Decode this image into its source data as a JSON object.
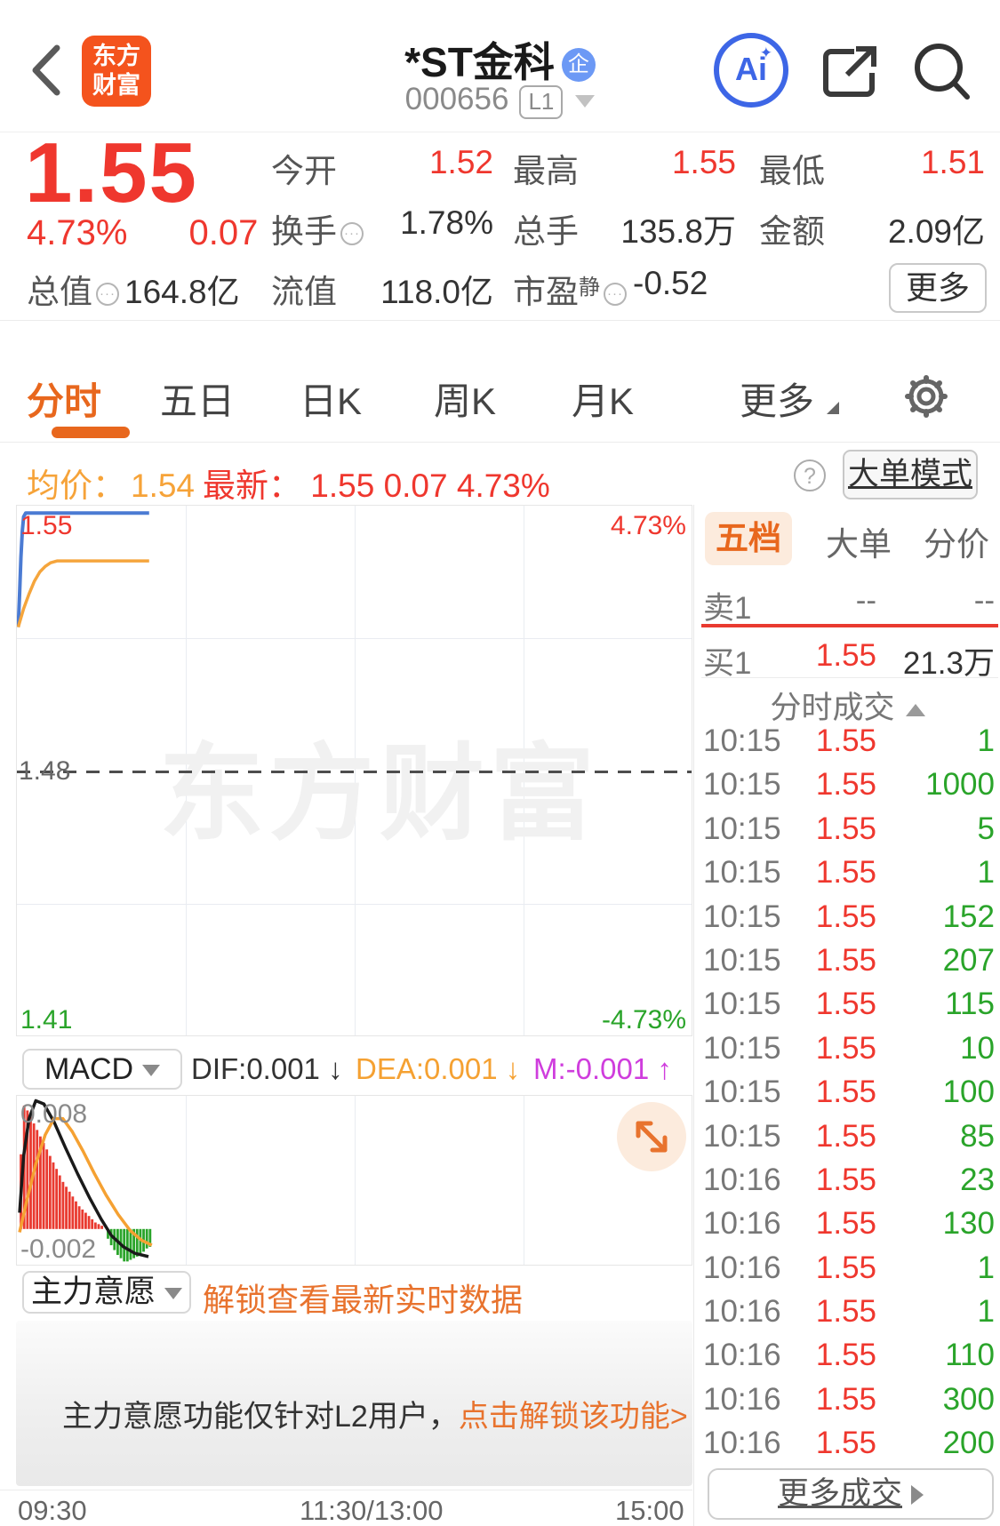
{
  "header": {
    "logo_line1": "东方",
    "logo_line2": "财富",
    "title": "*ST金科",
    "title_badge": "企",
    "code": "000656",
    "level_badge": "L1",
    "ai_label": "Ai"
  },
  "quote": {
    "price": "1.55",
    "change_pct": "4.73%",
    "change": "0.07",
    "stats": [
      {
        "label": "今开",
        "value": "1.52"
      },
      {
        "label": "最高",
        "value": "1.55"
      },
      {
        "label": "最低",
        "value": "1.51"
      },
      {
        "label": "换手",
        "value": "1.78%"
      },
      {
        "label": "总手",
        "value": "135.8万"
      },
      {
        "label": "金额",
        "value": "2.09亿"
      },
      {
        "label": "总值",
        "value": "164.8亿"
      },
      {
        "label": "流值",
        "value": "118.0亿"
      },
      {
        "label": "市盈",
        "sub_label": "静",
        "value": "-0.52"
      }
    ],
    "more_label": "更多"
  },
  "tabs": {
    "items": [
      "分时",
      "五日",
      "日K",
      "周K",
      "月K",
      "更多"
    ],
    "active_index": 0
  },
  "subheader": {
    "avg_label": "均价：",
    "avg_value": "1.54",
    "latest_text": "最新： 1.55  0.07  4.73%",
    "help_icon": "?",
    "mode_button": "大单模式"
  },
  "watermark": "东方财富",
  "chart_data": [
    {
      "type": "line",
      "title": "分时图",
      "x_axis_labels": [
        "09:30",
        "11:30/13:00",
        "15:00"
      ],
      "ylim": [
        1.41,
        1.55
      ],
      "ylim_draw": [
        1.408,
        1.552
      ],
      "prev_close": 1.48,
      "labels": {
        "top_left": "1.55",
        "top_right": "4.73%",
        "mid_left": "1.48",
        "bottom_left": "1.41",
        "bottom_right": "-4.73%"
      },
      "series": [
        {
          "name": "price",
          "color": "#4b7bd3",
          "width": 4,
          "points": [
            [
              0.002,
              1.519
            ],
            [
              0.004,
              1.528
            ],
            [
              0.006,
              1.538
            ],
            [
              0.008,
              1.545
            ],
            [
              0.01,
              1.549
            ],
            [
              0.013,
              1.55
            ],
            [
              0.196,
              1.55
            ]
          ]
        },
        {
          "name": "avg",
          "color": "#f5a53c",
          "width": 3.5,
          "points": [
            [
              0.002,
              1.519
            ],
            [
              0.01,
              1.524
            ],
            [
              0.018,
              1.528
            ],
            [
              0.026,
              1.5315
            ],
            [
              0.034,
              1.534
            ],
            [
              0.042,
              1.5355
            ],
            [
              0.05,
              1.5365
            ],
            [
              0.06,
              1.537
            ],
            [
              0.196,
              1.537
            ]
          ]
        }
      ]
    },
    {
      "type": "bar",
      "title": "MACD",
      "ylim": [
        -0.002,
        0.008
      ],
      "ylim_draw": [
        -0.0022,
        0.0082
      ],
      "labels": {
        "top": "0.008",
        "bottom": "-0.002"
      },
      "bar_width": 2.8,
      "bars_up_color": "#e93a30",
      "bars_down_color": "#2aa42a",
      "bars": [
        [
          0.006,
          0.0046
        ],
        [
          0.0108,
          0.0076
        ],
        [
          0.0156,
          0.0073
        ],
        [
          0.0204,
          0.0069
        ],
        [
          0.0252,
          0.0065
        ],
        [
          0.03,
          0.0061
        ],
        [
          0.0348,
          0.0057
        ],
        [
          0.0396,
          0.0053
        ],
        [
          0.0444,
          0.0049
        ],
        [
          0.0492,
          0.0045
        ],
        [
          0.054,
          0.0041
        ],
        [
          0.0588,
          0.0037
        ],
        [
          0.0636,
          0.0033
        ],
        [
          0.0684,
          0.0029
        ],
        [
          0.0732,
          0.0026
        ],
        [
          0.078,
          0.0023
        ],
        [
          0.0828,
          0.002
        ],
        [
          0.0876,
          0.0017
        ],
        [
          0.0924,
          0.0014
        ],
        [
          0.0972,
          0.0012
        ],
        [
          0.102,
          0.001
        ],
        [
          0.1068,
          0.0008
        ],
        [
          0.1116,
          0.0006
        ],
        [
          0.1164,
          0.0004
        ],
        [
          0.1212,
          0.0003
        ],
        [
          0.126,
          0.0002
        ],
        [
          0.135,
          -0.0006
        ],
        [
          0.1398,
          -0.001
        ],
        [
          0.1446,
          -0.0013
        ],
        [
          0.1494,
          -0.0016
        ],
        [
          0.1542,
          -0.0018
        ],
        [
          0.159,
          -0.002
        ],
        [
          0.1638,
          -0.002
        ],
        [
          0.1686,
          -0.0019
        ],
        [
          0.1734,
          -0.0018
        ],
        [
          0.1782,
          -0.0017
        ],
        [
          0.183,
          -0.0015
        ],
        [
          0.1878,
          -0.0014
        ],
        [
          0.1926,
          -0.0012
        ],
        [
          0.1974,
          -0.0011
        ]
      ],
      "series": [
        {
          "name": "DIF",
          "color": "#1a1a1a",
          "width": 3.5,
          "points": [
            [
              0.004,
              0.001
            ],
            [
              0.01,
              0.0045
            ],
            [
              0.018,
              0.0068
            ],
            [
              0.028,
              0.0079
            ],
            [
              0.04,
              0.0077
            ],
            [
              0.055,
              0.0066
            ],
            [
              0.072,
              0.005
            ],
            [
              0.09,
              0.0034
            ],
            [
              0.108,
              0.0019
            ],
            [
              0.125,
              0.0006
            ],
            [
              0.14,
              -0.0004
            ],
            [
              0.158,
              -0.0011
            ],
            [
              0.175,
              -0.0015
            ],
            [
              0.195,
              -0.0017
            ]
          ]
        },
        {
          "name": "DEA",
          "color": "#f5a132",
          "width": 3.5,
          "points": [
            [
              0.004,
              -0.0002
            ],
            [
              0.015,
              0.0018
            ],
            [
              0.028,
              0.004
            ],
            [
              0.042,
              0.0058
            ],
            [
              0.055,
              0.0068
            ],
            [
              0.068,
              0.0068
            ],
            [
              0.082,
              0.006
            ],
            [
              0.098,
              0.0048
            ],
            [
              0.115,
              0.0034
            ],
            [
              0.132,
              0.0021
            ],
            [
              0.15,
              0.0009
            ],
            [
              0.168,
              -0.0001
            ],
            [
              0.185,
              -0.0007
            ],
            [
              0.2,
              -0.001
            ]
          ]
        }
      ]
    }
  ],
  "macd_row": {
    "indicator": "MACD",
    "dif_text": "DIF:0.001",
    "dif_arrow": "↓",
    "dea_text": "DEA:0.001",
    "dea_arrow": "↓",
    "m_text": "M:-0.001",
    "m_arrow": "↑",
    "dif_color": "#333333",
    "dea_color": "#f5a132",
    "m_color": "#cf3ddd"
  },
  "mainforce": {
    "selector_label": "主力意愿",
    "unlock_hint": "解锁查看最新实时数据",
    "banner_text": "主力意愿功能仅针对L2用户，",
    "banner_link": "点击解锁该功能>"
  },
  "time_axis": [
    "09:30",
    "11:30/13:00",
    "15:00"
  ],
  "panel": {
    "tabs": [
      "五档",
      "大单",
      "分价"
    ],
    "active_tab": "五档",
    "sell_row": {
      "label": "卖1",
      "price": "--",
      "volume": "--"
    },
    "buy_row": {
      "label": "买1",
      "price": "1.55",
      "volume": "21.3万"
    },
    "list_title": "分时成交",
    "trades": [
      {
        "time": "10:15",
        "price": "1.55",
        "volume": "1"
      },
      {
        "time": "10:15",
        "price": "1.55",
        "volume": "1000"
      },
      {
        "time": "10:15",
        "price": "1.55",
        "volume": "5"
      },
      {
        "time": "10:15",
        "price": "1.55",
        "volume": "1"
      },
      {
        "time": "10:15",
        "price": "1.55",
        "volume": "152"
      },
      {
        "time": "10:15",
        "price": "1.55",
        "volume": "207"
      },
      {
        "time": "10:15",
        "price": "1.55",
        "volume": "115"
      },
      {
        "time": "10:15",
        "price": "1.55",
        "volume": "10"
      },
      {
        "time": "10:15",
        "price": "1.55",
        "volume": "100"
      },
      {
        "time": "10:15",
        "price": "1.55",
        "volume": "85"
      },
      {
        "time": "10:16",
        "price": "1.55",
        "volume": "23"
      },
      {
        "time": "10:16",
        "price": "1.55",
        "volume": "130"
      },
      {
        "time": "10:16",
        "price": "1.55",
        "volume": "1"
      },
      {
        "time": "10:16",
        "price": "1.55",
        "volume": "1"
      },
      {
        "time": "10:16",
        "price": "1.55",
        "volume": "110"
      },
      {
        "time": "10:16",
        "price": "1.55",
        "volume": "300"
      },
      {
        "time": "10:16",
        "price": "1.55",
        "volume": "200"
      }
    ],
    "more_label": "更多成交"
  },
  "colors": {
    "up_red": "#ef372e",
    "down_green": "#2aa42a",
    "accent_orange": "#e8671d",
    "avg_orange": "#f5a53c",
    "price_line_blue": "#4b7bd3",
    "ai_blue": "#3d66e6",
    "ent_badge_blue": "#6c99f5",
    "logo_orange": "#f4531d",
    "magenta": "#cf3ddd"
  }
}
